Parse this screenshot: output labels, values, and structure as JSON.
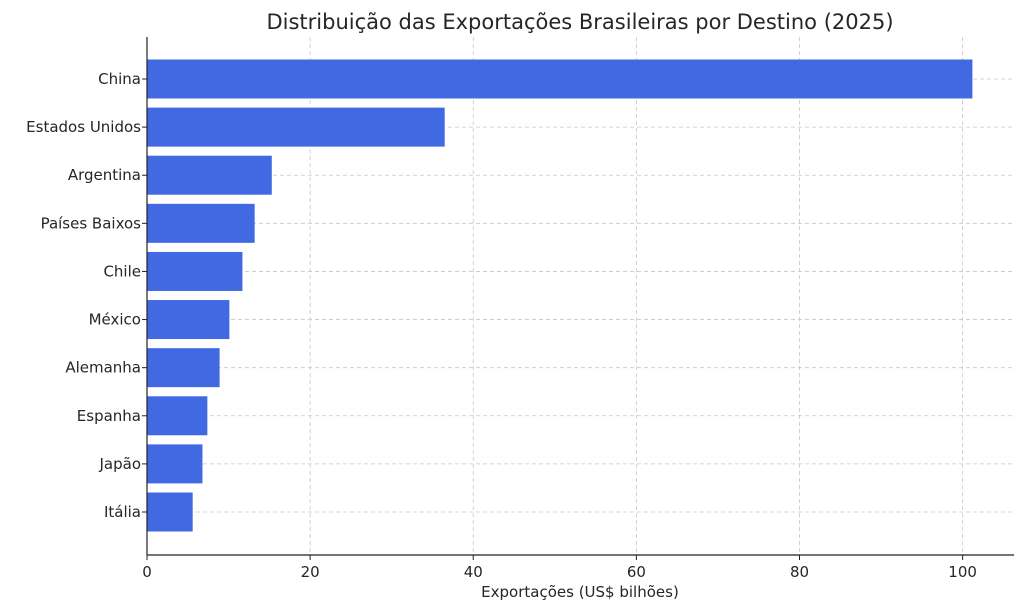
{
  "chart_data": {
    "type": "bar",
    "orientation": "horizontal",
    "title": "Distribuição das Exportações Brasileiras por Destino (2025)",
    "xlabel": "Exportações (US$ bilhões)",
    "ylabel": "",
    "categories": [
      "China",
      "Estados Unidos",
      "Argentina",
      "Países Baixos",
      "Chile",
      "México",
      "Alemanha",
      "Espanha",
      "Japão",
      "Itália"
    ],
    "values": [
      101.2,
      36.5,
      15.3,
      13.2,
      11.7,
      10.1,
      8.9,
      7.4,
      6.8,
      5.6
    ],
    "xlim": [
      0,
      106.3
    ],
    "xticks": [
      0,
      20,
      40,
      60,
      80,
      100
    ],
    "grid": true,
    "bar_color": "#4169e1"
  }
}
